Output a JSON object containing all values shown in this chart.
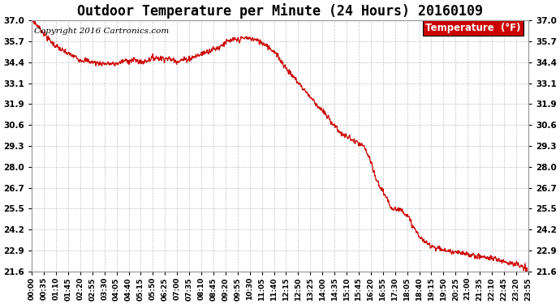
{
  "title": "Outdoor Temperature per Minute (24 Hours) 20160109",
  "copyright": "Copyright 2016 Cartronics.com",
  "legend_label": "Temperature  (°F)",
  "line_color": "#cc0000",
  "legend_bg": "#cc0000",
  "legend_text_color": "#ffffff",
  "bg_color": "#ffffff",
  "plot_bg": "#ffffff",
  "grid_color": "#aaaaaa",
  "yticks": [
    21.6,
    22.9,
    24.2,
    25.5,
    26.7,
    28.0,
    29.3,
    30.6,
    31.9,
    33.1,
    34.4,
    35.7,
    37.0
  ],
  "ymin": 21.6,
  "ymax": 37.0,
  "xtick_labels": [
    "00:00",
    "00:35",
    "01:10",
    "01:45",
    "02:20",
    "02:55",
    "03:30",
    "04:05",
    "04:40",
    "05:15",
    "05:50",
    "06:25",
    "07:00",
    "07:35",
    "08:10",
    "08:45",
    "09:20",
    "09:55",
    "10:30",
    "11:05",
    "11:40",
    "12:15",
    "12:50",
    "13:25",
    "14:00",
    "14:35",
    "15:10",
    "15:45",
    "16:20",
    "16:55",
    "17:30",
    "18:05",
    "18:40",
    "19:15",
    "19:50",
    "20:25",
    "21:00",
    "21:35",
    "22:10",
    "22:45",
    "23:20",
    "23:55"
  ],
  "title_fontsize": 12,
  "copyright_fontsize": 7.5,
  "tick_fontsize": 6.5,
  "ytick_fontsize": 7.5,
  "legend_fontsize": 8.5,
  "waypoints": [
    [
      0,
      37.0
    ],
    [
      15,
      36.7
    ],
    [
      30,
      36.3
    ],
    [
      50,
      35.8
    ],
    [
      70,
      35.4
    ],
    [
      90,
      35.1
    ],
    [
      110,
      34.9
    ],
    [
      140,
      34.6
    ],
    [
      180,
      34.4
    ],
    [
      210,
      34.35
    ],
    [
      240,
      34.3
    ],
    [
      270,
      34.5
    ],
    [
      300,
      34.55
    ],
    [
      320,
      34.4
    ],
    [
      340,
      34.6
    ],
    [
      360,
      34.7
    ],
    [
      390,
      34.65
    ],
    [
      420,
      34.5
    ],
    [
      450,
      34.6
    ],
    [
      480,
      34.8
    ],
    [
      510,
      35.1
    ],
    [
      540,
      35.3
    ],
    [
      560,
      35.6
    ],
    [
      580,
      35.75
    ],
    [
      600,
      35.8
    ],
    [
      620,
      35.9
    ],
    [
      640,
      35.85
    ],
    [
      660,
      35.7
    ],
    [
      680,
      35.5
    ],
    [
      700,
      35.1
    ],
    [
      720,
      34.6
    ],
    [
      740,
      34.0
    ],
    [
      760,
      33.5
    ],
    [
      780,
      33.0
    ],
    [
      800,
      32.5
    ],
    [
      820,
      32.0
    ],
    [
      840,
      31.5
    ],
    [
      860,
      31.0
    ],
    [
      880,
      30.5
    ],
    [
      900,
      30.0
    ],
    [
      920,
      29.8
    ],
    [
      940,
      29.5
    ],
    [
      960,
      29.3
    ],
    [
      970,
      29.0
    ],
    [
      980,
      28.5
    ],
    [
      990,
      27.8
    ],
    [
      1000,
      27.2
    ],
    [
      1010,
      26.8
    ],
    [
      1020,
      26.5
    ],
    [
      1030,
      26.0
    ],
    [
      1040,
      25.6
    ],
    [
      1050,
      25.5
    ],
    [
      1060,
      25.4
    ],
    [
      1070,
      25.4
    ],
    [
      1080,
      25.3
    ],
    [
      1090,
      25.0
    ],
    [
      1100,
      24.6
    ],
    [
      1110,
      24.2
    ],
    [
      1120,
      23.9
    ],
    [
      1130,
      23.6
    ],
    [
      1140,
      23.4
    ],
    [
      1160,
      23.2
    ],
    [
      1180,
      23.0
    ],
    [
      1200,
      22.9
    ],
    [
      1220,
      22.8
    ],
    [
      1250,
      22.7
    ],
    [
      1280,
      22.6
    ],
    [
      1310,
      22.5
    ],
    [
      1340,
      22.4
    ],
    [
      1380,
      22.2
    ],
    [
      1410,
      22.0
    ],
    [
      1430,
      21.8
    ],
    [
      1440,
      21.6
    ]
  ]
}
